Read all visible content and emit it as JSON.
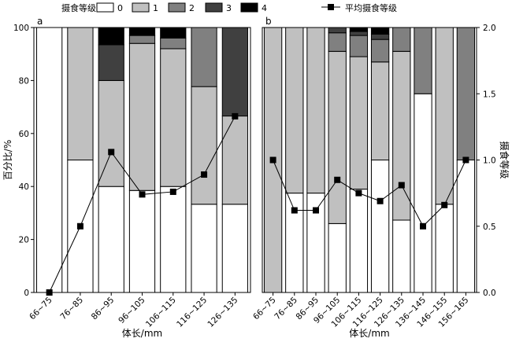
{
  "chart_data": [
    {
      "type": "bar",
      "stacked": true,
      "panel_label": "a",
      "xlabel": "体长/mm",
      "ylabel": "百分比/%",
      "ylim": [
        0,
        100
      ],
      "yticks": [
        0,
        20,
        40,
        60,
        80,
        100
      ],
      "categories": [
        "66~75",
        "76~85",
        "86~95",
        "96~105",
        "106~115",
        "116~125",
        "126~135"
      ],
      "series": [
        {
          "name": "0",
          "color": "#ffffff",
          "values": [
            100,
            50,
            40,
            38.5,
            40,
            33.3,
            33.3
          ]
        },
        {
          "name": "1",
          "color": "#c0c0c0",
          "values": [
            0,
            50,
            40,
            55.5,
            52,
            44.4,
            33.3
          ]
        },
        {
          "name": "2",
          "color": "#808080",
          "values": [
            0,
            0,
            0,
            3,
            4,
            22.3,
            0
          ]
        },
        {
          "name": "3",
          "color": "#404040",
          "values": [
            0,
            0,
            13.5,
            0,
            0,
            0,
            33.4
          ]
        },
        {
          "name": "4",
          "color": "#000000",
          "values": [
            0,
            0,
            6.5,
            3,
            4,
            0,
            0
          ]
        }
      ],
      "line": {
        "name": "平均摄食等级",
        "axis": "right",
        "ylim": [
          0,
          2.0
        ],
        "values": [
          0,
          0.5,
          1.06,
          0.74,
          0.76,
          0.89,
          1.33
        ]
      }
    },
    {
      "type": "bar",
      "stacked": true,
      "panel_label": "b",
      "xlabel": "体长/mm",
      "y2label": "摄食等级",
      "ylim": [
        0,
        100
      ],
      "y2ticks": [
        "0.0",
        "0.5",
        "1.0",
        "1.5",
        "2.0"
      ],
      "categories": [
        "66~75",
        "76~85",
        "86~95",
        "96~105",
        "106~115",
        "116~125",
        "126~135",
        "136~145",
        "146~155",
        "156~165"
      ],
      "series": [
        {
          "name": "0",
          "color": "#ffffff",
          "values": [
            0,
            37.5,
            37.5,
            26,
            39,
            50,
            27.3,
            75,
            33.3,
            50
          ]
        },
        {
          "name": "1",
          "color": "#c0c0c0",
          "values": [
            100,
            62.5,
            62.5,
            65,
            50,
            37,
            63.7,
            0,
            66.7,
            0
          ]
        },
        {
          "name": "2",
          "color": "#808080",
          "values": [
            0,
            0,
            0,
            7,
            8,
            8.5,
            9,
            25,
            0,
            50
          ]
        },
        {
          "name": "3",
          "color": "#404040",
          "values": [
            0,
            0,
            0,
            2,
            1.5,
            2,
            0,
            0,
            0,
            0
          ]
        },
        {
          "name": "4",
          "color": "#000000",
          "values": [
            0,
            0,
            0,
            0,
            1.5,
            2.5,
            0,
            0,
            0,
            0
          ]
        }
      ],
      "line": {
        "name": "平均摄食等级",
        "axis": "right",
        "ylim": [
          0,
          2.0
        ],
        "values": [
          1.0,
          0.62,
          0.62,
          0.85,
          0.75,
          0.69,
          0.81,
          0.5,
          0.66,
          1.0
        ]
      }
    }
  ],
  "legend": {
    "title": "摄食等级",
    "items": [
      "0",
      "1",
      "2",
      "3",
      "4"
    ],
    "line_label": "平均摄食等级"
  }
}
